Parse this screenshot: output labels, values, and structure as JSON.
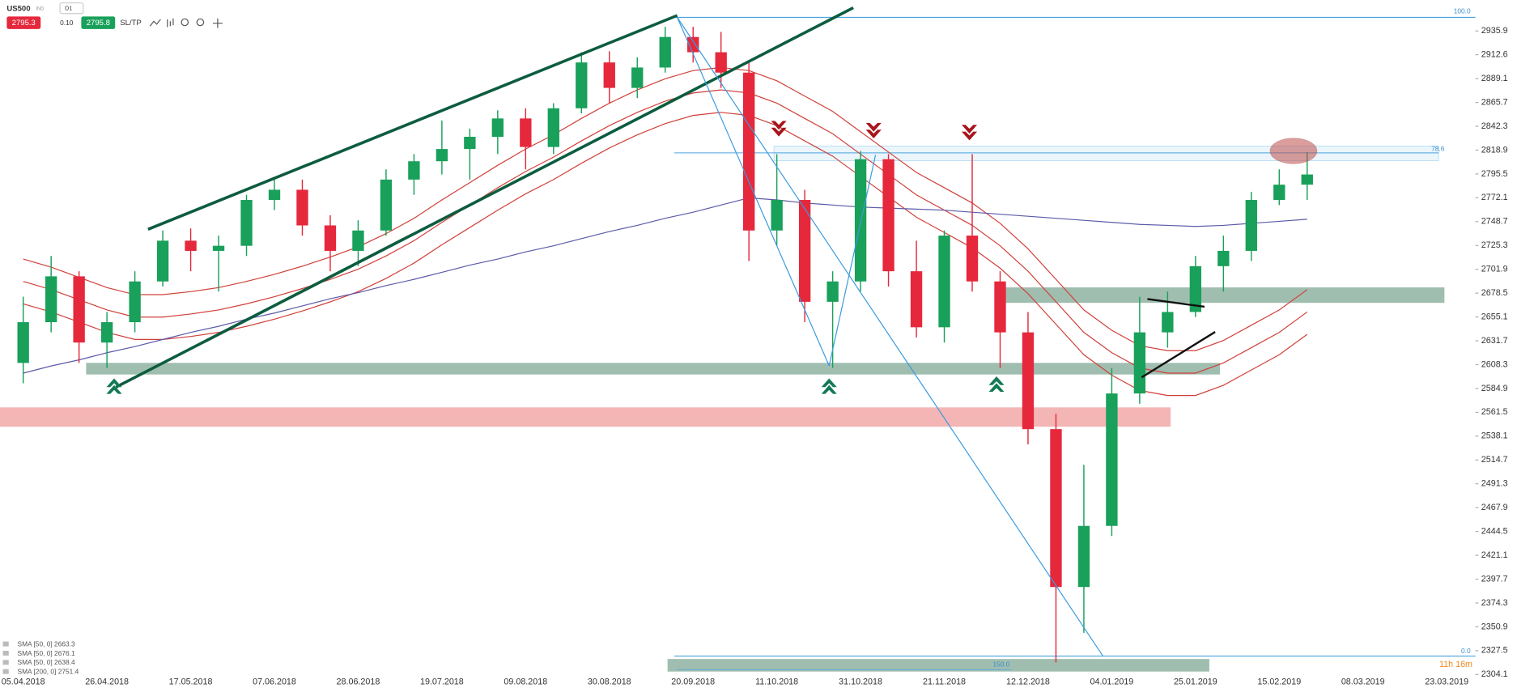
{
  "toolbar": {
    "symbol": "US500",
    "class": "IND",
    "timeframe": "D1",
    "sell": 2795.3,
    "spread": "0.10",
    "buy": 2795.8,
    "sltp": "SL/TP"
  },
  "chart_data": {
    "type": "candlestick",
    "categories": [
      "05.04.2018",
      null,
      null,
      "26.04.2018",
      null,
      null,
      "17.05.2018",
      null,
      null,
      "07.06.2018",
      null,
      null,
      "28.06.2018",
      null,
      null,
      "19.07.2018",
      null,
      null,
      "09.08.2018",
      null,
      null,
      "30.08.2018",
      null,
      null,
      "20.09.2018",
      null,
      null,
      "11.10.2018",
      null,
      null,
      "31.10.2018",
      null,
      null,
      "21.11.2018",
      null,
      null,
      "12.12.2018",
      null,
      null,
      "04.01.2019",
      null,
      null,
      "25.01.2019",
      null,
      null,
      "15.02.2019",
      null,
      null,
      "08.03.2019",
      null,
      null,
      "23.03.2019"
    ],
    "open": [
      2610,
      2650,
      2695,
      2630,
      2650,
      2690,
      2730,
      2720,
      2725,
      2770,
      2780,
      2745,
      2720,
      2740,
      2790,
      2808,
      2820,
      2832,
      2850,
      2822,
      2860,
      2905,
      2880,
      2900,
      2930,
      2915,
      2895,
      2740,
      2770,
      2670,
      2690,
      2810,
      2700,
      2645,
      2735,
      2690,
      2640,
      2545,
      2390,
      2450,
      2580,
      2640,
      2660,
      2705,
      2720,
      2770,
      2785,
      null,
      null,
      null,
      null,
      null
    ],
    "high": [
      2675,
      2715,
      2700,
      2660,
      2700,
      2740,
      2742,
      2735,
      2775,
      2792,
      2790,
      2755,
      2750,
      2800,
      2815,
      2848,
      2840,
      2858,
      2860,
      2865,
      2915,
      2916,
      2910,
      2940,
      2940,
      2935,
      2905,
      2815,
      2780,
      2700,
      2818,
      2815,
      2730,
      2740,
      2815,
      2700,
      2660,
      2560,
      2510,
      2605,
      2675,
      2680,
      2715,
      2735,
      2778,
      2800,
      2817,
      null,
      null,
      null,
      null,
      null
    ],
    "low": [
      2590,
      2640,
      2610,
      2605,
      2640,
      2685,
      2700,
      2680,
      2715,
      2760,
      2735,
      2700,
      2705,
      2735,
      2775,
      2795,
      2790,
      2815,
      2800,
      2815,
      2855,
      2865,
      2870,
      2895,
      2905,
      2880,
      2710,
      2725,
      2650,
      2605,
      2680,
      2685,
      2635,
      2630,
      2680,
      2605,
      2530,
      2316,
      2345,
      2440,
      2570,
      2625,
      2655,
      2680,
      2710,
      2765,
      2770,
      null,
      null,
      null,
      null,
      null
    ],
    "close": [
      2650,
      2695,
      2630,
      2650,
      2690,
      2730,
      2720,
      2725,
      2770,
      2780,
      2745,
      2720,
      2740,
      2790,
      2808,
      2820,
      2832,
      2850,
      2822,
      2860,
      2905,
      2880,
      2900,
      2930,
      2915,
      2895,
      2740,
      2770,
      2670,
      2690,
      2810,
      2700,
      2645,
      2735,
      2690,
      2640,
      2545,
      2390,
      2450,
      2580,
      2640,
      2660,
      2705,
      2720,
      2770,
      2785,
      2795,
      null,
      null,
      null,
      null,
      null
    ],
    "up_color": "#19a05a",
    "down_color": "#e5283c",
    "ylim": [
      2303.2,
      2966.3
    ],
    "yticks": [
      2935.9,
      2912.6,
      2889.1,
      2865.7,
      2842.3,
      2818.9,
      2795.5,
      2772.1,
      2748.7,
      2725.3,
      2701.9,
      2678.5,
      2655.1,
      2631.7,
      2608.3,
      2584.9,
      2561.5,
      2538.1,
      2514.7,
      2491.3,
      2467.9,
      2444.5,
      2421.1,
      2397.7,
      2374.3,
      2350.9,
      2327.5,
      2304.1
    ],
    "grid": false,
    "overlays": [
      {
        "name": "SMA [50, 0] 2663.3",
        "color": "#d0403a",
        "values": [
          2690,
          2682,
          2672,
          2662,
          2655,
          2655,
          2658,
          2662,
          2668,
          2675,
          2683,
          2692,
          2702,
          2715,
          2730,
          2748,
          2765,
          2782,
          2798,
          2812,
          2828,
          2843,
          2856,
          2867,
          2875,
          2878,
          2875,
          2865,
          2850,
          2835,
          2815,
          2795,
          2775,
          2760,
          2745,
          2725,
          2700,
          2670,
          2640,
          2620,
          2605,
          2600,
          2600,
          2610,
          2625,
          2640,
          2660,
          null,
          null,
          null,
          null,
          null
        ]
      },
      {
        "name": "SMA [50, 0] 2676.1",
        "color": "#d0403a",
        "values": [
          2712,
          2704,
          2694,
          2684,
          2677,
          2677,
          2680,
          2684,
          2690,
          2697,
          2705,
          2714,
          2724,
          2737,
          2752,
          2770,
          2787,
          2804,
          2820,
          2834,
          2850,
          2865,
          2878,
          2889,
          2897,
          2900,
          2897,
          2887,
          2872,
          2857,
          2837,
          2817,
          2797,
          2782,
          2767,
          2747,
          2722,
          2692,
          2662,
          2642,
          2627,
          2622,
          2622,
          2632,
          2647,
          2662,
          2682,
          null,
          null,
          null,
          null,
          null
        ]
      },
      {
        "name": "SMA [50, 0] 2638.4",
        "color": "#d0403a",
        "values": [
          2668,
          2660,
          2650,
          2640,
          2633,
          2633,
          2636,
          2640,
          2646,
          2653,
          2661,
          2670,
          2680,
          2693,
          2708,
          2726,
          2743,
          2760,
          2776,
          2790,
          2806,
          2821,
          2834,
          2845,
          2853,
          2856,
          2853,
          2843,
          2828,
          2813,
          2793,
          2773,
          2753,
          2738,
          2723,
          2703,
          2678,
          2648,
          2618,
          2598,
          2583,
          2578,
          2578,
          2588,
          2603,
          2618,
          2638,
          null,
          null,
          null,
          null,
          null
        ]
      },
      {
        "name": "SMA [200, 0] 2751.4",
        "color": "#5b5aa8",
        "values": [
          2600,
          2607,
          2613,
          2620,
          2626,
          2633,
          2640,
          2646,
          2653,
          2659,
          2666,
          2673,
          2679,
          2686,
          2692,
          2699,
          2706,
          2712,
          2719,
          2725,
          2732,
          2739,
          2745,
          2752,
          2758,
          2765,
          2772,
          2770,
          2767,
          2765,
          2763,
          2762,
          2761,
          2760,
          2758,
          2756,
          2754,
          2752,
          2750,
          2748,
          2746,
          2745,
          2744,
          2745,
          2747,
          2749,
          2751,
          null,
          null,
          null,
          null,
          null
        ]
      }
    ],
    "annotations": {
      "fib_top": "100.0",
      "fib_mid": "78.6",
      "fib_zero": "0.0",
      "fib_ext": "150.0",
      "countdown": "11h 16m"
    }
  }
}
